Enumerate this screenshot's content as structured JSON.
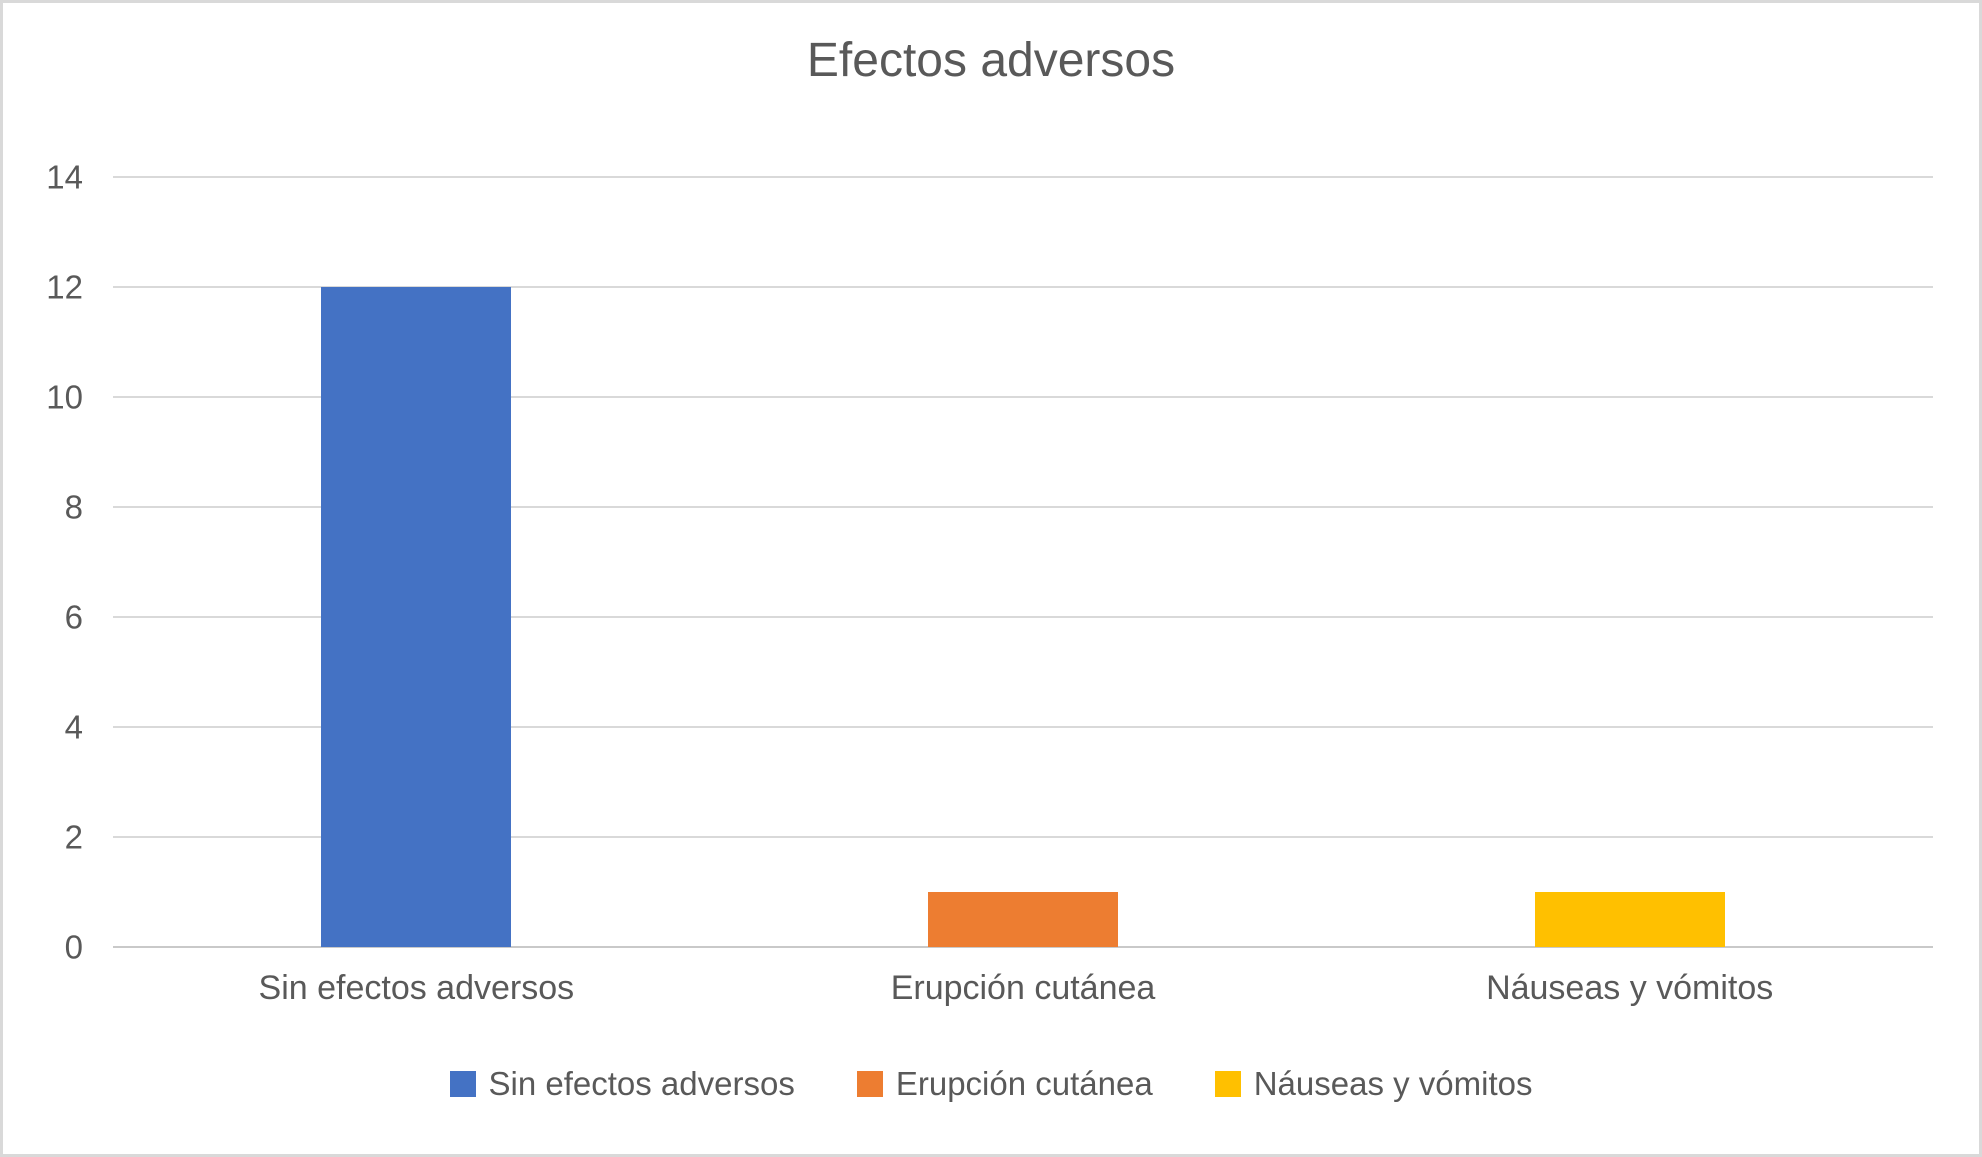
{
  "frame": {
    "background": "#FFFFFF",
    "border_color": "#D9D9D9"
  },
  "chart_data": {
    "type": "bar",
    "title": "Efectos adversos",
    "categories": [
      "Sin efectos adversos",
      "Erupción cutánea",
      "Náuseas y vómitos"
    ],
    "values": [
      12,
      1,
      1
    ],
    "bar_colors": [
      "#4472C4",
      "#ED7D31",
      "#FFC000"
    ],
    "xlabel": "",
    "ylabel": "",
    "ylim": [
      0,
      14
    ],
    "yticks": [
      0,
      2,
      4,
      6,
      8,
      10,
      12,
      14
    ],
    "grid": true,
    "gridline_color": "#D9D9D9",
    "axis_line_color": "#C9C9C9",
    "text_color": "#595959",
    "legend_position": "bottom",
    "legend": [
      {
        "label": "Sin efectos adversos",
        "color": "#4472C4"
      },
      {
        "label": "Erupción cutánea",
        "color": "#ED7D31"
      },
      {
        "label": "Náuseas y vómitos",
        "color": "#FFC000"
      }
    ]
  }
}
